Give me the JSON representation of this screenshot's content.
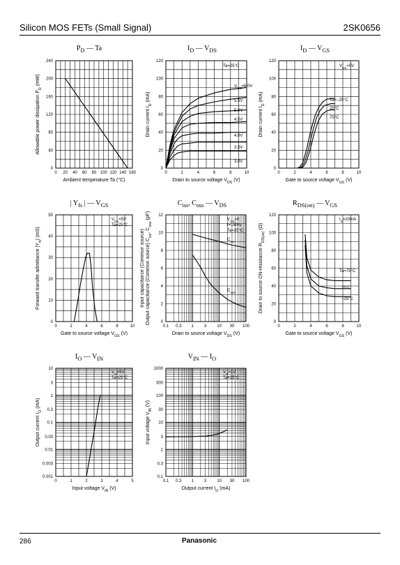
{
  "header": {
    "title": "Silicon MOS FETs (Small Signal)",
    "part": "2SK0656"
  },
  "footer": {
    "page": "286",
    "brand": "Panasonic"
  },
  "charts": [
    {
      "id": "pd",
      "title": "P_D — Ta",
      "xlabel": "Ambient temperature   Ta   (°C)",
      "ylabel": "Allowable power dissipation   P_D   (mW)",
      "xticks": [
        "0",
        "20",
        "40",
        "60",
        "80",
        "100",
        "120",
        "140",
        "160"
      ],
      "yticks": [
        "0",
        "40",
        "80",
        "120",
        "160",
        "200",
        "240"
      ],
      "xlim": [
        0,
        160
      ],
      "ylim": [
        0,
        240
      ],
      "xscale": "lin",
      "yscale": "lin",
      "series": [
        {
          "x": [
            20,
            150
          ],
          "y": [
            200,
            0
          ]
        }
      ],
      "notes": [],
      "labels": []
    },
    {
      "id": "id_vds",
      "title": "I_D — V_DS",
      "xlabel": "Drain to source voltage   V_DS   (V)",
      "ylabel": "Drain current   I_D   (mA)",
      "xticks": [
        "0",
        "2",
        "4",
        "6",
        "8",
        "10"
      ],
      "yticks": [
        "0",
        "20",
        "40",
        "60",
        "80",
        "100",
        "120"
      ],
      "xlim": [
        0,
        10
      ],
      "ylim": [
        0,
        120
      ],
      "xscale": "lin",
      "yscale": "lin",
      "series": [
        {
          "x": [
            0,
            0.5,
            1,
            2,
            3,
            4,
            6,
            8,
            10
          ],
          "y": [
            0,
            25,
            43,
            62,
            72,
            78,
            84,
            88,
            90
          ]
        },
        {
          "x": [
            0,
            0.5,
            1,
            2,
            3,
            4,
            6,
            8,
            10
          ],
          "y": [
            0,
            23,
            40,
            58,
            66,
            70,
            74,
            77,
            79
          ]
        },
        {
          "x": [
            0,
            0.5,
            1,
            2,
            3,
            4,
            6,
            8,
            10
          ],
          "y": [
            0,
            21,
            37,
            52,
            58,
            61,
            63,
            64,
            65
          ]
        },
        {
          "x": [
            0,
            0.5,
            1,
            2,
            3,
            4,
            6,
            8,
            10
          ],
          "y": [
            0,
            19,
            33,
            45,
            49,
            50,
            51,
            51,
            52
          ]
        },
        {
          "x": [
            0,
            0.5,
            1,
            1.5,
            2,
            3,
            4,
            6,
            8,
            10
          ],
          "y": [
            0,
            16,
            27,
            33,
            36,
            38,
            39,
            39,
            40,
            40
          ]
        },
        {
          "x": [
            0,
            0.5,
            1,
            1.5,
            2,
            3,
            4,
            6,
            8,
            10
          ],
          "y": [
            0,
            12,
            20,
            25,
            27,
            28,
            29,
            29,
            29,
            29
          ]
        },
        {
          "x": [
            0,
            0.5,
            1,
            1.5,
            2,
            3,
            4,
            6,
            8,
            10
          ],
          "y": [
            0,
            9,
            14,
            17,
            18,
            19,
            19,
            19,
            19,
            19
          ]
        }
      ],
      "notes": [
        "Ta=25°C"
      ],
      "labels": [
        "V_GS=6.0V",
        "5.5V",
        "5.0V",
        "4.5V",
        "4.0V",
        "3.5V",
        "3.0V"
      ]
    },
    {
      "id": "id_vgs",
      "title": "I_D — V_GS",
      "xlabel": "Gate to source voltage   V_GS   (V)",
      "ylabel": "Drain current   I_D   (mA)",
      "xticks": [
        "0",
        "2",
        "4",
        "6",
        "8",
        "10"
      ],
      "yticks": [
        "0",
        "20",
        "40",
        "60",
        "80",
        "100",
        "120"
      ],
      "xlim": [
        0,
        10
      ],
      "ylim": [
        0,
        120
      ],
      "xscale": "lin",
      "yscale": "lin",
      "series": [
        {
          "x": [
            2.3,
            2.6,
            3,
            3.5,
            4,
            4.5,
            5,
            5.5,
            6,
            7
          ],
          "y": [
            0,
            1,
            6,
            22,
            42,
            58,
            68,
            74,
            77,
            78
          ]
        },
        {
          "x": [
            2.5,
            2.8,
            3.2,
            3.7,
            4.2,
            4.7,
            5.2,
            5.7,
            6.5,
            7
          ],
          "y": [
            0,
            1,
            6,
            21,
            40,
            56,
            65,
            70,
            72,
            72
          ]
        },
        {
          "x": [
            2.7,
            3,
            3.4,
            3.9,
            4.4,
            4.9,
            5.4,
            6,
            6.5,
            7
          ],
          "y": [
            0,
            1,
            6,
            20,
            38,
            52,
            60,
            64,
            65,
            65
          ]
        }
      ],
      "notes": [
        "V_DS=5V"
      ],
      "labels": [
        "Ta=−25°C",
        "25°C",
        "75°C"
      ]
    },
    {
      "id": "yfs_vgs",
      "title": "| Y_fs | — V_GS",
      "xlabel": "Gate to source voltage   V_GS   (V)",
      "ylabel": "Forward transfer admittance   |Y_fs|   (mS)",
      "xticks": [
        "0",
        "2",
        "4",
        "6",
        "8",
        "10"
      ],
      "yticks": [
        "0",
        "10",
        "20",
        "30",
        "40",
        "50"
      ],
      "xlim": [
        0,
        10
      ],
      "ylim": [
        0,
        50
      ],
      "xscale": "lin",
      "yscale": "lin",
      "series": [
        {
          "x": [
            2.4,
            2.8,
            3.2,
            3.6,
            3.9,
            4.1,
            4.4,
            4.6,
            4.8,
            5.1,
            5.4
          ],
          "y": [
            0,
            8,
            17,
            25,
            30,
            32,
            32,
            26,
            16,
            6,
            0
          ]
        }
      ],
      "notes": [
        "V_DS=5V",
        "Ta=25°C"
      ],
      "labels": []
    },
    {
      "id": "ciss",
      "title": "C_iss, C_oss — V_DS",
      "xlabel": "Drain to source voltage   V_DS   (V)",
      "ylabel": "Input capacitance (Common source)\nOutput capacitance (Common source)  C_iss, C_oss (pF)",
      "xticks": [
        "0.1",
        "0.3",
        "1",
        "3",
        "10",
        "30",
        "100"
      ],
      "yticks": [
        "0",
        "2",
        "4",
        "6",
        "8",
        "10",
        "12"
      ],
      "xlim": [
        0.1,
        100
      ],
      "ylim": [
        0,
        12
      ],
      "xscale": "log",
      "yscale": "lin",
      "series": [
        {
          "x": [
            1,
            3,
            10,
            30,
            100
          ],
          "y": [
            9.8,
            9.4,
            9.0,
            8.6,
            8.3
          ]
        },
        {
          "x": [
            1,
            2,
            3,
            5,
            10,
            20,
            30,
            50,
            100
          ],
          "y": [
            7.5,
            6.1,
            5.1,
            4.1,
            3.2,
            2.5,
            2.2,
            1.9,
            1.6
          ]
        }
      ],
      "notes": [
        "V_GS=0",
        "f=1MHz",
        "Ta=25°C"
      ],
      "labels": [
        "C_iss",
        "C_oss"
      ]
    },
    {
      "id": "rds_vgs",
      "title": "R_DS(on) — V_GS",
      "xlabel": "Gate to source voltage   V_GS   (V)",
      "ylabel": "Drain to source ON-resistance   R_DS(on)   (Ω)",
      "xticks": [
        "0",
        "2",
        "4",
        "6",
        "8",
        "10"
      ],
      "yticks": [
        "0",
        "20",
        "40",
        "60",
        "80",
        "100",
        "120"
      ],
      "xlim": [
        0,
        10
      ],
      "ylim": [
        0,
        120
      ],
      "xscale": "lin",
      "yscale": "lin",
      "series": [
        {
          "x": [
            3.3,
            3.5,
            4,
            5,
            6,
            7,
            8,
            9
          ],
          "y": [
            98,
            72,
            58,
            50,
            47,
            46,
            46,
            46
          ]
        },
        {
          "x": [
            3.3,
            3.5,
            4,
            5,
            6,
            7,
            8,
            9
          ],
          "y": [
            92,
            63,
            48,
            40,
            38,
            37,
            37,
            37
          ]
        },
        {
          "x": [
            3.3,
            3.5,
            4,
            5,
            6,
            7,
            8,
            9
          ],
          "y": [
            86,
            55,
            40,
            32,
            29,
            28,
            28,
            28
          ]
        }
      ],
      "notes": [
        "I_D=20mA"
      ],
      "labels": [
        "Ta=75°C",
        "25°C",
        "−25°C"
      ]
    },
    {
      "id": "io_vin",
      "title": "I_O — V_IN",
      "xlabel": "Input voltage   V_IN   (V)",
      "ylabel": "Output current   I_O   (mA)",
      "xticks": [
        "0",
        "1",
        "2",
        "3",
        "4",
        "5"
      ],
      "yticks": [
        "0.001",
        "0.003",
        "0.01",
        "0.03",
        "0.1",
        "0.3",
        "1",
        "3",
        "10"
      ],
      "xlim": [
        0,
        5
      ],
      "ylim": [
        0.001,
        10
      ],
      "xscale": "lin",
      "yscale": "log",
      "series": [
        {
          "x": [
            2.0,
            2.15,
            2.3,
            2.45,
            2.6,
            2.75,
            2.9
          ],
          "y": [
            0.001,
            0.003,
            0.01,
            0.03,
            0.1,
            0.35,
            1
          ]
        }
      ],
      "notes": [
        "V_O=5V",
        "Ta=25°C"
      ],
      "labels": []
    },
    {
      "id": "vin_io",
      "title": "V_IN — I_O",
      "xlabel": "Output current   I_O   (mA)",
      "ylabel": "Input voltage   V_IN   (V)",
      "xticks": [
        "0.1",
        "0.3",
        "1",
        "3",
        "10",
        "30",
        "100"
      ],
      "yticks": [
        "0.1",
        "0.3",
        "1",
        "3",
        "10",
        "30",
        "100",
        "300",
        "1000"
      ],
      "xlim": [
        0.1,
        100
      ],
      "ylim": [
        0.1,
        1000
      ],
      "xscale": "log",
      "yscale": "log",
      "series": [
        {
          "x": [
            0.1,
            1,
            3,
            5,
            8,
            10,
            15,
            20
          ],
          "y": [
            2.9,
            3.0,
            3.1,
            3.3,
            3.6,
            3.9,
            4.6,
            5.3
          ]
        }
      ],
      "notes": [
        "V_O=1V",
        "Ta=25°C"
      ],
      "labels": []
    }
  ]
}
